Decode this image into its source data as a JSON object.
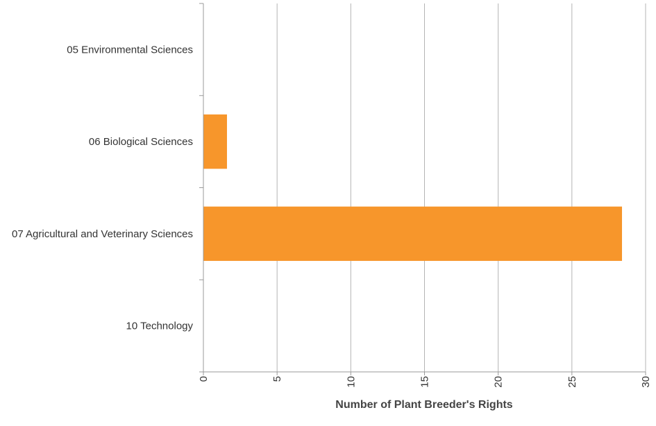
{
  "chart_data": {
    "type": "bar",
    "orientation": "horizontal",
    "categories": [
      "05 Environmental Sciences",
      "06 Biological Sciences",
      "07 Agricultural and Veterinary Sciences",
      "10 Technology"
    ],
    "values": [
      0,
      1.6,
      28.4,
      0
    ],
    "xlabel": "Number of Plant Breeder's Rights",
    "xlim": [
      0,
      30
    ],
    "xticks": [
      0,
      5,
      10,
      15,
      20,
      25,
      30
    ],
    "grid": true,
    "bar_color": "#f7962b"
  }
}
